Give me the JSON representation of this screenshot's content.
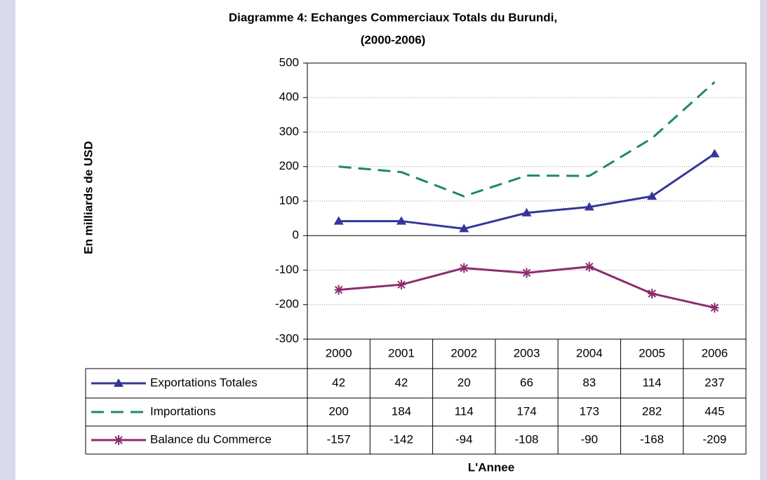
{
  "chart_data": {
    "type": "line",
    "title": [
      "Diagramme 4: Echanges Commerciaux Totals du Burundi,",
      "(2000-2006)"
    ],
    "y_label": "En milliards de USD",
    "x_label": "L'Annee",
    "categories": [
      "2000",
      "2001",
      "2002",
      "2003",
      "2004",
      "2005",
      "2006"
    ],
    "series": [
      {
        "name": "Exportations Totales",
        "color": "#35359a",
        "marker": "triangle",
        "dash": false,
        "values": [
          42,
          42,
          20,
          66,
          83,
          114,
          237
        ]
      },
      {
        "name": "Importations",
        "color": "#1f8a5c",
        "marker": "none",
        "dash": true,
        "values": [
          200,
          184,
          114,
          174,
          173,
          282,
          445
        ]
      },
      {
        "name": "Balance du Commerce",
        "color": "#8c2c6e",
        "marker": "asterisk",
        "dash": false,
        "values": [
          -157,
          -142,
          -94,
          -108,
          -90,
          -168,
          -209
        ]
      }
    ],
    "ylim": [
      -300,
      500
    ],
    "yticks": [
      -300,
      -200,
      -100,
      0,
      100,
      200,
      300,
      400,
      500
    ],
    "grid": true
  }
}
